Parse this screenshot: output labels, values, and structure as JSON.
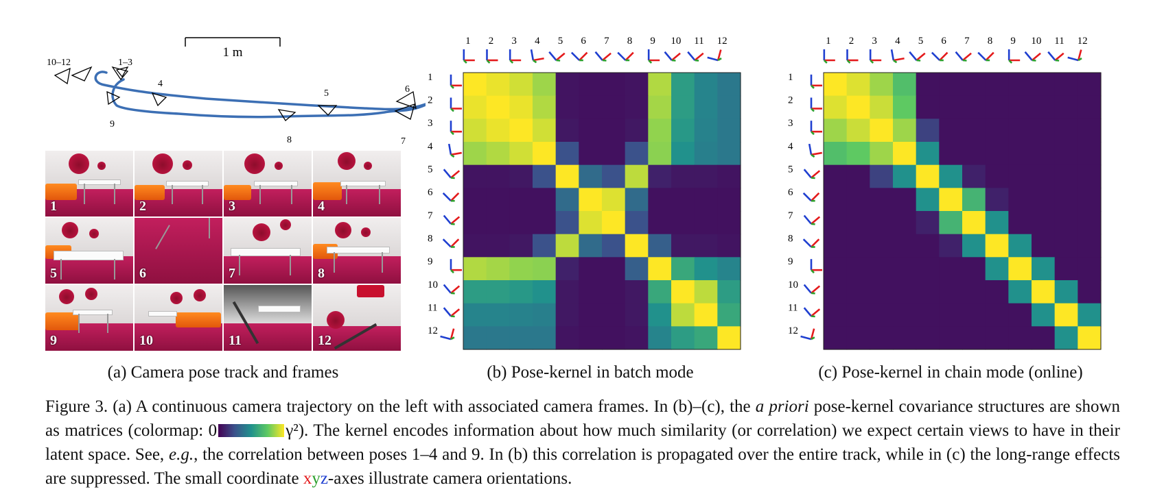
{
  "panel_a": {
    "scale_label": "1 m",
    "pose_labels": [
      {
        "id": "10-12",
        "text": "10–12"
      },
      {
        "id": "1-3",
        "text": "1–3"
      },
      {
        "id": "4",
        "text": "4"
      },
      {
        "id": "5",
        "text": "5"
      },
      {
        "id": "6",
        "text": "6"
      },
      {
        "id": "7",
        "text": "7"
      },
      {
        "id": "8",
        "text": "8"
      },
      {
        "id": "9",
        "text": "9"
      }
    ],
    "frames": [
      "1",
      "2",
      "3",
      "4",
      "5",
      "6",
      "7",
      "8",
      "9",
      "10",
      "11",
      "12"
    ],
    "caption": "(a) Camera pose track and frames"
  },
  "panel_b": {
    "caption": "(b) Pose-kernel in batch mode",
    "axis_labels": [
      "1",
      "2",
      "3",
      "4",
      "5",
      "6",
      "7",
      "8",
      "9",
      "10",
      "11",
      "12"
    ]
  },
  "panel_c": {
    "caption": "(c) Pose-kernel in chain mode (online)",
    "axis_labels": [
      "1",
      "2",
      "3",
      "4",
      "5",
      "6",
      "7",
      "8",
      "9",
      "10",
      "11",
      "12"
    ]
  },
  "figure_caption": {
    "part1": "Figure 3.  (a) A continuous camera trajectory on the left with associated camera frames.  In (b)–(c), the ",
    "italic1": "a priori",
    "part2": " pose-kernel covariance structures are shown as matrices (colormap: 0",
    "part3": "γ²).  The kernel encodes information about how much similarity (or correlation) we expect certain views to have in their latent space.  See, ",
    "italic2": "e.g.",
    "part4": ", the correlation between poses 1–4 and 9.  In (b) this correlation is propagated over the entire track, while in (c) the long-range effects are suppressed.  The small coordinate ",
    "x": "x",
    "y": "y",
    "z": "z",
    "part5": "-axes illustrate camera orientations."
  },
  "colormap": [
    "#440154",
    "#3b528b",
    "#21918c",
    "#5ec962",
    "#fde725"
  ],
  "axes_colors": {
    "x": "#e41a1c",
    "y": "#2ca02c",
    "z": "#1f3fd0"
  },
  "chart_data": [
    {
      "type": "heatmap",
      "title": "",
      "categories": [
        "1",
        "2",
        "3",
        "4",
        "5",
        "6",
        "7",
        "8",
        "9",
        "10",
        "11",
        "12"
      ],
      "range": [
        0,
        1
      ],
      "values": [
        [
          1.0,
          0.97,
          0.93,
          0.85,
          0.06,
          0.05,
          0.05,
          0.06,
          0.88,
          0.55,
          0.45,
          0.4
        ],
        [
          0.97,
          1.0,
          0.97,
          0.88,
          0.06,
          0.05,
          0.05,
          0.06,
          0.86,
          0.55,
          0.45,
          0.4
        ],
        [
          0.93,
          0.97,
          1.0,
          0.93,
          0.07,
          0.05,
          0.05,
          0.07,
          0.83,
          0.53,
          0.44,
          0.4
        ],
        [
          0.85,
          0.88,
          0.93,
          1.0,
          0.25,
          0.05,
          0.05,
          0.25,
          0.82,
          0.5,
          0.43,
          0.4
        ],
        [
          0.06,
          0.06,
          0.07,
          0.25,
          1.0,
          0.35,
          0.25,
          0.9,
          0.1,
          0.07,
          0.07,
          0.06
        ],
        [
          0.05,
          0.05,
          0.05,
          0.05,
          0.35,
          1.0,
          0.95,
          0.35,
          0.05,
          0.05,
          0.05,
          0.05
        ],
        [
          0.05,
          0.05,
          0.05,
          0.05,
          0.25,
          0.95,
          1.0,
          0.25,
          0.05,
          0.05,
          0.05,
          0.05
        ],
        [
          0.06,
          0.06,
          0.07,
          0.25,
          0.9,
          0.35,
          0.25,
          1.0,
          0.3,
          0.07,
          0.07,
          0.06
        ],
        [
          0.88,
          0.86,
          0.83,
          0.82,
          0.1,
          0.05,
          0.05,
          0.3,
          1.0,
          0.6,
          0.5,
          0.45
        ],
        [
          0.55,
          0.55,
          0.53,
          0.5,
          0.07,
          0.05,
          0.05,
          0.07,
          0.6,
          1.0,
          0.9,
          0.55
        ],
        [
          0.45,
          0.45,
          0.44,
          0.43,
          0.07,
          0.05,
          0.05,
          0.07,
          0.5,
          0.9,
          1.0,
          0.6
        ],
        [
          0.4,
          0.4,
          0.4,
          0.4,
          0.06,
          0.05,
          0.05,
          0.06,
          0.45,
          0.55,
          0.6,
          1.0
        ]
      ]
    },
    {
      "type": "heatmap",
      "title": "",
      "categories": [
        "1",
        "2",
        "3",
        "4",
        "5",
        "6",
        "7",
        "8",
        "9",
        "10",
        "11",
        "12"
      ],
      "range": [
        0,
        1
      ],
      "values": [
        [
          1.0,
          0.95,
          0.85,
          0.7,
          0.05,
          0.05,
          0.05,
          0.05,
          0.05,
          0.05,
          0.05,
          0.05
        ],
        [
          0.95,
          1.0,
          0.92,
          0.75,
          0.05,
          0.05,
          0.05,
          0.05,
          0.05,
          0.05,
          0.05,
          0.05
        ],
        [
          0.85,
          0.92,
          1.0,
          0.85,
          0.2,
          0.05,
          0.05,
          0.05,
          0.05,
          0.05,
          0.05,
          0.05
        ],
        [
          0.7,
          0.75,
          0.85,
          1.0,
          0.5,
          0.05,
          0.05,
          0.05,
          0.05,
          0.05,
          0.05,
          0.05
        ],
        [
          0.05,
          0.05,
          0.2,
          0.5,
          1.0,
          0.5,
          0.1,
          0.05,
          0.05,
          0.05,
          0.05,
          0.05
        ],
        [
          0.05,
          0.05,
          0.05,
          0.05,
          0.5,
          1.0,
          0.65,
          0.1,
          0.05,
          0.05,
          0.05,
          0.05
        ],
        [
          0.05,
          0.05,
          0.05,
          0.05,
          0.1,
          0.65,
          1.0,
          0.5,
          0.05,
          0.05,
          0.05,
          0.05
        ],
        [
          0.05,
          0.05,
          0.05,
          0.05,
          0.05,
          0.1,
          0.5,
          1.0,
          0.5,
          0.05,
          0.05,
          0.05
        ],
        [
          0.05,
          0.05,
          0.05,
          0.05,
          0.05,
          0.05,
          0.05,
          0.5,
          1.0,
          0.5,
          0.05,
          0.05
        ],
        [
          0.05,
          0.05,
          0.05,
          0.05,
          0.05,
          0.05,
          0.05,
          0.05,
          0.5,
          1.0,
          0.5,
          0.05
        ],
        [
          0.05,
          0.05,
          0.05,
          0.05,
          0.05,
          0.05,
          0.05,
          0.05,
          0.05,
          0.5,
          1.0,
          0.5
        ],
        [
          0.05,
          0.05,
          0.05,
          0.05,
          0.05,
          0.05,
          0.05,
          0.05,
          0.05,
          0.05,
          0.5,
          1.0
        ]
      ]
    }
  ]
}
